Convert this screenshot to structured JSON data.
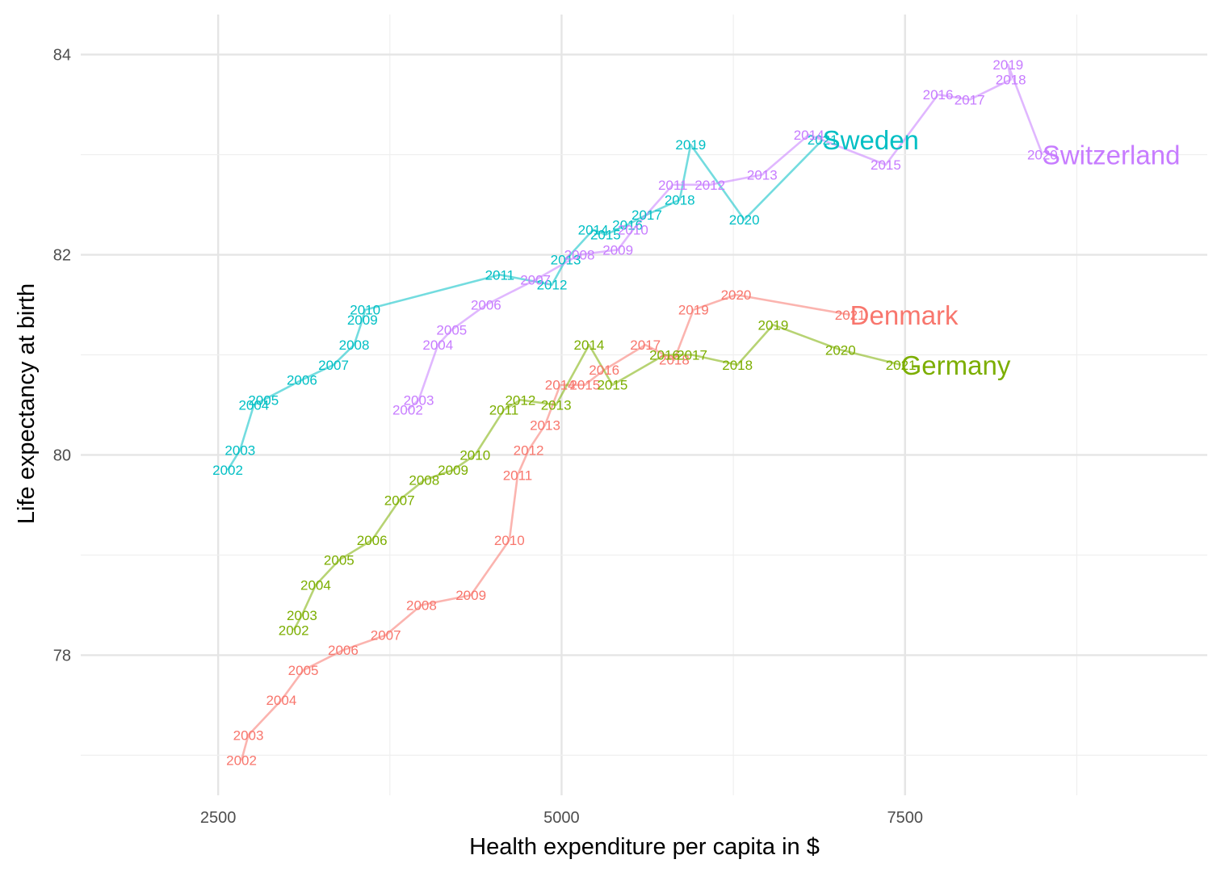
{
  "chart_data": {
    "type": "line",
    "xlabel": "Health expenditure per capita in $",
    "ylabel": "Life expectancy at birth",
    "xlim": [
      1500,
      9700
    ],
    "ylim": [
      76.6,
      84.4
    ],
    "xticks": [
      2500,
      5000,
      7500
    ],
    "yticks": [
      78,
      80,
      82,
      84
    ],
    "grid": true,
    "legend": "none",
    "series": [
      {
        "name": "Denmark",
        "color": "#F8766D",
        "points": [
          {
            "year": "2002",
            "x": 2670,
            "y": 76.95
          },
          {
            "year": "2003",
            "x": 2720,
            "y": 77.2
          },
          {
            "year": "2004",
            "x": 2960,
            "y": 77.55
          },
          {
            "year": "2005",
            "x": 3120,
            "y": 77.85
          },
          {
            "year": "2006",
            "x": 3410,
            "y": 78.05
          },
          {
            "year": "2007",
            "x": 3720,
            "y": 78.2
          },
          {
            "year": "2008",
            "x": 3980,
            "y": 78.5
          },
          {
            "year": "2009",
            "x": 4340,
            "y": 78.6
          },
          {
            "year": "2010",
            "x": 4620,
            "y": 79.15
          },
          {
            "year": "2011",
            "x": 4680,
            "y": 79.8
          },
          {
            "year": "2012",
            "x": 4760,
            "y": 80.05
          },
          {
            "year": "2013",
            "x": 4880,
            "y": 80.3
          },
          {
            "year": "2014",
            "x": 4990,
            "y": 80.7
          },
          {
            "year": "2015",
            "x": 5170,
            "y": 80.7
          },
          {
            "year": "2016",
            "x": 5310,
            "y": 80.85
          },
          {
            "year": "2017",
            "x": 5610,
            "y": 81.1
          },
          {
            "year": "2018",
            "x": 5820,
            "y": 80.95
          },
          {
            "year": "2019",
            "x": 5960,
            "y": 81.45
          },
          {
            "year": "2020",
            "x": 6270,
            "y": 81.6
          },
          {
            "year": "2021",
            "x": 7100,
            "y": 81.4
          }
        ]
      },
      {
        "name": "Germany",
        "color": "#7CAE00",
        "points": [
          {
            "year": "2002",
            "x": 3050,
            "y": 78.25
          },
          {
            "year": "2003",
            "x": 3110,
            "y": 78.4
          },
          {
            "year": "2004",
            "x": 3210,
            "y": 78.7
          },
          {
            "year": "2005",
            "x": 3380,
            "y": 78.95
          },
          {
            "year": "2006",
            "x": 3620,
            "y": 79.15
          },
          {
            "year": "2007",
            "x": 3820,
            "y": 79.55
          },
          {
            "year": "2008",
            "x": 4000,
            "y": 79.75
          },
          {
            "year": "2009",
            "x": 4210,
            "y": 79.85
          },
          {
            "year": "2010",
            "x": 4370,
            "y": 80.0
          },
          {
            "year": "2011",
            "x": 4580,
            "y": 80.45
          },
          {
            "year": "2012",
            "x": 4700,
            "y": 80.55
          },
          {
            "year": "2013",
            "x": 4960,
            "y": 80.5
          },
          {
            "year": "2014",
            "x": 5200,
            "y": 81.1
          },
          {
            "year": "2015",
            "x": 5370,
            "y": 80.7
          },
          {
            "year": "2016",
            "x": 5750,
            "y": 81.0
          },
          {
            "year": "2017",
            "x": 5950,
            "y": 81.0
          },
          {
            "year": "2018",
            "x": 6280,
            "y": 80.9
          },
          {
            "year": "2019",
            "x": 6540,
            "y": 81.3
          },
          {
            "year": "2020",
            "x": 7030,
            "y": 81.05
          },
          {
            "year": "2021",
            "x": 7470,
            "y": 80.9
          }
        ]
      },
      {
        "name": "Sweden",
        "color": "#00BFC4",
        "points": [
          {
            "year": "2002",
            "x": 2570,
            "y": 79.85
          },
          {
            "year": "2003",
            "x": 2660,
            "y": 80.05
          },
          {
            "year": "2004",
            "x": 2760,
            "y": 80.5
          },
          {
            "year": "2005",
            "x": 2830,
            "y": 80.55
          },
          {
            "year": "2006",
            "x": 3110,
            "y": 80.75
          },
          {
            "year": "2007",
            "x": 3340,
            "y": 80.9
          },
          {
            "year": "2008",
            "x": 3490,
            "y": 81.1
          },
          {
            "year": "2009",
            "x": 3550,
            "y": 81.35
          },
          {
            "year": "2010",
            "x": 3570,
            "y": 81.45
          },
          {
            "year": "2011",
            "x": 4550,
            "y": 81.8
          },
          {
            "year": "2012",
            "x": 4930,
            "y": 81.7
          },
          {
            "year": "2013",
            "x": 5030,
            "y": 81.95
          },
          {
            "year": "2014",
            "x": 5230,
            "y": 82.25
          },
          {
            "year": "2015",
            "x": 5320,
            "y": 82.2
          },
          {
            "year": "2016",
            "x": 5480,
            "y": 82.3
          },
          {
            "year": "2017",
            "x": 5620,
            "y": 82.4
          },
          {
            "year": "2018",
            "x": 5860,
            "y": 82.55
          },
          {
            "year": "2019",
            "x": 5940,
            "y": 83.1
          },
          {
            "year": "2020",
            "x": 6330,
            "y": 82.35
          },
          {
            "year": "2021",
            "x": 6900,
            "y": 83.15
          }
        ]
      },
      {
        "name": "Switzerland",
        "color": "#C77CFF",
        "points": [
          {
            "year": "2002",
            "x": 3880,
            "y": 80.45
          },
          {
            "year": "2003",
            "x": 3960,
            "y": 80.55
          },
          {
            "year": "2004",
            "x": 4100,
            "y": 81.1
          },
          {
            "year": "2005",
            "x": 4200,
            "y": 81.25
          },
          {
            "year": "2006",
            "x": 4450,
            "y": 81.5
          },
          {
            "year": "2007",
            "x": 4810,
            "y": 81.75
          },
          {
            "year": "2008",
            "x": 5130,
            "y": 82.0
          },
          {
            "year": "2009",
            "x": 5410,
            "y": 82.05
          },
          {
            "year": "2010",
            "x": 5520,
            "y": 82.25
          },
          {
            "year": "2011",
            "x": 5810,
            "y": 82.7
          },
          {
            "year": "2012",
            "x": 6080,
            "y": 82.7
          },
          {
            "year": "2013",
            "x": 6460,
            "y": 82.8
          },
          {
            "year": "2014",
            "x": 6800,
            "y": 83.2
          },
          {
            "year": "2015",
            "x": 7360,
            "y": 82.9
          },
          {
            "year": "2016",
            "x": 7740,
            "y": 83.6
          },
          {
            "year": "2017",
            "x": 7970,
            "y": 83.55
          },
          {
            "year": "2018",
            "x": 8270,
            "y": 83.75
          },
          {
            "year": "2019",
            "x": 8250,
            "y": 83.9
          },
          {
            "year": "2020",
            "x": 8500,
            "y": 83.0
          }
        ]
      }
    ]
  }
}
